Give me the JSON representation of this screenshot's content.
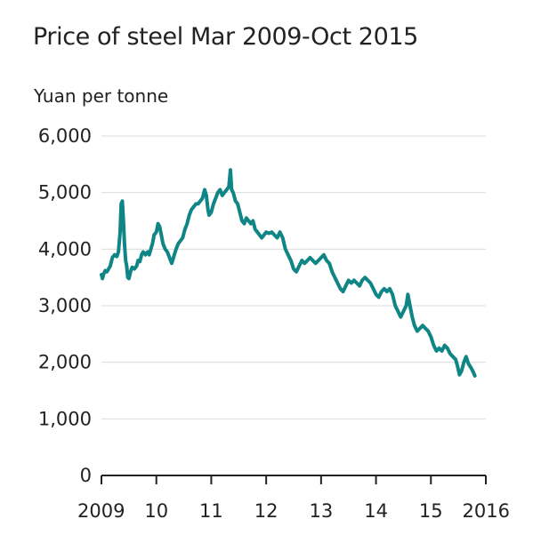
{
  "chart_data": {
    "type": "line",
    "title": "Price of steel Mar 2009-Oct 2015",
    "ylabel": "Yuan per tonne",
    "xlabel": "",
    "x_range": [
      2009.0,
      2016.0
    ],
    "ylim": [
      0,
      6000
    ],
    "y_ticks": [
      {
        "value": 0,
        "label": "0"
      },
      {
        "value": 1000,
        "label": "1,000"
      },
      {
        "value": 2000,
        "label": "2,000"
      },
      {
        "value": 3000,
        "label": "3,000"
      },
      {
        "value": 4000,
        "label": "4,000"
      },
      {
        "value": 5000,
        "label": "5,000"
      },
      {
        "value": 6000,
        "label": "6,000"
      }
    ],
    "x_ticks": [
      {
        "value": 2009,
        "label": "2009"
      },
      {
        "value": 2010,
        "label": "10"
      },
      {
        "value": 2011,
        "label": "11"
      },
      {
        "value": 2012,
        "label": "12"
      },
      {
        "value": 2013,
        "label": "13"
      },
      {
        "value": 2014,
        "label": "14"
      },
      {
        "value": 2015,
        "label": "15"
      },
      {
        "value": 2016,
        "label": "2016"
      }
    ],
    "grid": "horizontal",
    "legend": "none",
    "series": [
      {
        "color": "#0f8585",
        "points": [
          [
            2009.0,
            3550
          ],
          [
            2009.02,
            3480
          ],
          [
            2009.04,
            3560
          ],
          [
            2009.07,
            3620
          ],
          [
            2009.1,
            3600
          ],
          [
            2009.13,
            3650
          ],
          [
            2009.16,
            3700
          ],
          [
            2009.2,
            3850
          ],
          [
            2009.24,
            3900
          ],
          [
            2009.28,
            3870
          ],
          [
            2009.31,
            3950
          ],
          [
            2009.34,
            4300
          ],
          [
            2009.36,
            4800
          ],
          [
            2009.38,
            4850
          ],
          [
            2009.4,
            4500
          ],
          [
            2009.42,
            4100
          ],
          [
            2009.44,
            3800
          ],
          [
            2009.46,
            3700
          ],
          [
            2009.48,
            3500
          ],
          [
            2009.5,
            3480
          ],
          [
            2009.53,
            3600
          ],
          [
            2009.56,
            3680
          ],
          [
            2009.6,
            3650
          ],
          [
            2009.64,
            3700
          ],
          [
            2009.67,
            3800
          ],
          [
            2009.7,
            3780
          ],
          [
            2009.73,
            3900
          ],
          [
            2009.76,
            3950
          ],
          [
            2009.8,
            3900
          ],
          [
            2009.84,
            3950
          ],
          [
            2009.87,
            3900
          ],
          [
            2009.9,
            4000
          ],
          [
            2009.93,
            4100
          ],
          [
            2009.96,
            4250
          ],
          [
            2010.0,
            4300
          ],
          [
            2010.03,
            4450
          ],
          [
            2010.06,
            4400
          ],
          [
            2010.09,
            4250
          ],
          [
            2010.12,
            4100
          ],
          [
            2010.16,
            4000
          ],
          [
            2010.2,
            3950
          ],
          [
            2010.24,
            3850
          ],
          [
            2010.28,
            3750
          ],
          [
            2010.32,
            3880
          ],
          [
            2010.36,
            4000
          ],
          [
            2010.4,
            4100
          ],
          [
            2010.44,
            4150
          ],
          [
            2010.48,
            4200
          ],
          [
            2010.52,
            4350
          ],
          [
            2010.56,
            4450
          ],
          [
            2010.6,
            4600
          ],
          [
            2010.64,
            4700
          ],
          [
            2010.68,
            4750
          ],
          [
            2010.72,
            4800
          ],
          [
            2010.76,
            4800
          ],
          [
            2010.8,
            4850
          ],
          [
            2010.84,
            4900
          ],
          [
            2010.88,
            5050
          ],
          [
            2010.91,
            4950
          ],
          [
            2010.94,
            4700
          ],
          [
            2010.96,
            4600
          ],
          [
            2011.0,
            4650
          ],
          [
            2011.04,
            4800
          ],
          [
            2011.08,
            4900
          ],
          [
            2011.12,
            5000
          ],
          [
            2011.16,
            5050
          ],
          [
            2011.2,
            4950
          ],
          [
            2011.24,
            5000
          ],
          [
            2011.28,
            5050
          ],
          [
            2011.32,
            5100
          ],
          [
            2011.35,
            5400
          ],
          [
            2011.37,
            5050
          ],
          [
            2011.4,
            5000
          ],
          [
            2011.44,
            4850
          ],
          [
            2011.48,
            4800
          ],
          [
            2011.52,
            4650
          ],
          [
            2011.56,
            4500
          ],
          [
            2011.6,
            4450
          ],
          [
            2011.64,
            4550
          ],
          [
            2011.68,
            4500
          ],
          [
            2011.72,
            4450
          ],
          [
            2011.76,
            4500
          ],
          [
            2011.8,
            4350
          ],
          [
            2011.84,
            4300
          ],
          [
            2011.88,
            4250
          ],
          [
            2011.92,
            4200
          ],
          [
            2011.96,
            4250
          ],
          [
            2012.0,
            4300
          ],
          [
            2012.05,
            4280
          ],
          [
            2012.1,
            4300
          ],
          [
            2012.15,
            4250
          ],
          [
            2012.2,
            4200
          ],
          [
            2012.25,
            4300
          ],
          [
            2012.3,
            4200
          ],
          [
            2012.35,
            4000
          ],
          [
            2012.4,
            3900
          ],
          [
            2012.45,
            3800
          ],
          [
            2012.5,
            3650
          ],
          [
            2012.55,
            3600
          ],
          [
            2012.6,
            3700
          ],
          [
            2012.65,
            3800
          ],
          [
            2012.7,
            3750
          ],
          [
            2012.75,
            3800
          ],
          [
            2012.8,
            3850
          ],
          [
            2012.85,
            3800
          ],
          [
            2012.9,
            3750
          ],
          [
            2012.95,
            3800
          ],
          [
            2013.0,
            3850
          ],
          [
            2013.05,
            3900
          ],
          [
            2013.1,
            3800
          ],
          [
            2013.15,
            3750
          ],
          [
            2013.2,
            3600
          ],
          [
            2013.25,
            3500
          ],
          [
            2013.3,
            3400
          ],
          [
            2013.35,
            3300
          ],
          [
            2013.4,
            3250
          ],
          [
            2013.45,
            3350
          ],
          [
            2013.5,
            3450
          ],
          [
            2013.55,
            3400
          ],
          [
            2013.6,
            3450
          ],
          [
            2013.65,
            3400
          ],
          [
            2013.7,
            3350
          ],
          [
            2013.75,
            3450
          ],
          [
            2013.8,
            3500
          ],
          [
            2013.85,
            3450
          ],
          [
            2013.9,
            3400
          ],
          [
            2013.95,
            3300
          ],
          [
            2014.0,
            3200
          ],
          [
            2014.05,
            3150
          ],
          [
            2014.1,
            3250
          ],
          [
            2014.15,
            3300
          ],
          [
            2014.2,
            3250
          ],
          [
            2014.25,
            3300
          ],
          [
            2014.3,
            3200
          ],
          [
            2014.35,
            3000
          ],
          [
            2014.4,
            2900
          ],
          [
            2014.45,
            2800
          ],
          [
            2014.5,
            2900
          ],
          [
            2014.55,
            3000
          ],
          [
            2014.58,
            3200
          ],
          [
            2014.62,
            3000
          ],
          [
            2014.66,
            2800
          ],
          [
            2014.7,
            2650
          ],
          [
            2014.75,
            2550
          ],
          [
            2014.8,
            2600
          ],
          [
            2014.85,
            2650
          ],
          [
            2014.9,
            2600
          ],
          [
            2014.95,
            2550
          ],
          [
            2015.0,
            2450
          ],
          [
            2015.05,
            2300
          ],
          [
            2015.1,
            2200
          ],
          [
            2015.15,
            2250
          ],
          [
            2015.2,
            2200
          ],
          [
            2015.25,
            2300
          ],
          [
            2015.3,
            2250
          ],
          [
            2015.35,
            2150
          ],
          [
            2015.4,
            2100
          ],
          [
            2015.45,
            2050
          ],
          [
            2015.48,
            1950
          ],
          [
            2015.52,
            1780
          ],
          [
            2015.56,
            1850
          ],
          [
            2015.6,
            2000
          ],
          [
            2015.64,
            2100
          ],
          [
            2015.68,
            1980
          ],
          [
            2015.72,
            1920
          ],
          [
            2015.76,
            1850
          ],
          [
            2015.8,
            1760
          ]
        ]
      }
    ]
  }
}
